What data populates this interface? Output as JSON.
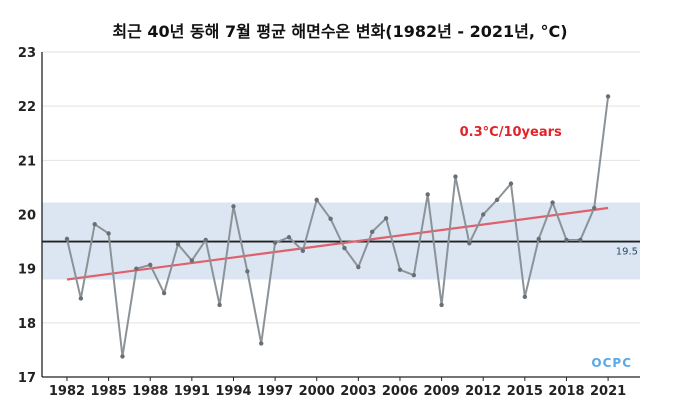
{
  "chart_data": {
    "type": "line",
    "title": "최근 40년 동해 7월 평균 해면수온 변화(1982년 - 2021년, °C)",
    "xlabel": "",
    "ylabel": "",
    "x": [
      1982,
      1983,
      1984,
      1985,
      1986,
      1987,
      1988,
      1989,
      1990,
      1991,
      1992,
      1993,
      1994,
      1995,
      1996,
      1997,
      1998,
      1999,
      2000,
      2001,
      2002,
      2003,
      2004,
      2005,
      2006,
      2007,
      2008,
      2009,
      2010,
      2011,
      2012,
      2013,
      2014,
      2015,
      2016,
      2017,
      2018,
      2019,
      2020,
      2021
    ],
    "series": [
      {
        "values": [
          19.55,
          18.45,
          19.82,
          19.65,
          17.38,
          19.0,
          19.07,
          18.55,
          19.45,
          19.15,
          19.53,
          18.33,
          20.15,
          18.95,
          17.62,
          19.48,
          19.58,
          19.33,
          20.27,
          19.92,
          19.38,
          19.03,
          19.68,
          19.93,
          18.98,
          18.88,
          20.37,
          18.33,
          20.7,
          19.47,
          20.0,
          20.27,
          20.57,
          18.48,
          19.55,
          20.22,
          19.53,
          19.53,
          20.12,
          22.18
        ],
        "color": "#8b9399"
      }
    ],
    "x_ticks": [
      "1982",
      "1985",
      "1988",
      "1991",
      "1994",
      "1997",
      "2000",
      "2003",
      "2006",
      "2009",
      "2012",
      "2015",
      "2018",
      "2021"
    ],
    "y_ticks": [
      "17",
      "18",
      "19",
      "20",
      "21",
      "22",
      "23"
    ],
    "ylim": [
      17,
      23
    ],
    "mean": {
      "value": 19.5,
      "label": "19.5",
      "color": "#222222"
    },
    "band": {
      "low": 18.8,
      "high": 20.22,
      "color": "#dbe6f2"
    },
    "trend": {
      "start": 18.8,
      "end": 20.12,
      "label": "0.3°C/10years",
      "color": "#e0606c"
    },
    "grid": "horizontal",
    "logo": "OCPC"
  }
}
